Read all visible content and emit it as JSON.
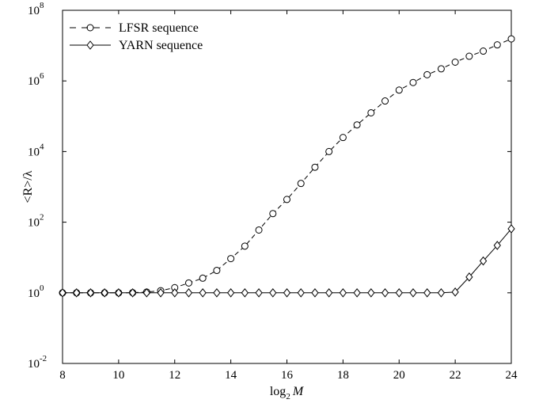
{
  "chart_data": {
    "type": "line",
    "xlabel": {
      "base": "log",
      "sub": "2",
      "var": "M"
    },
    "ylabel": "<R>/λ",
    "xlim": [
      8,
      24
    ],
    "ylim": [
      0.01,
      100000000
    ],
    "yscale": "log",
    "grid": false,
    "legend_position": "top-left",
    "x_ticks": [
      "8",
      "10",
      "12",
      "14",
      "16",
      "18",
      "20",
      "22",
      "24"
    ],
    "y_ticks": [
      {
        "base": "10",
        "exp": "-2"
      },
      {
        "base": "10",
        "exp": "0"
      },
      {
        "base": "10",
        "exp": "2"
      },
      {
        "base": "10",
        "exp": "4"
      },
      {
        "base": "10",
        "exp": "6"
      },
      {
        "base": "10",
        "exp": "8"
      }
    ],
    "x": [
      8,
      8.5,
      9,
      9.5,
      10,
      10.5,
      11,
      11.5,
      12,
      12.5,
      13,
      13.5,
      14,
      14.5,
      15,
      15.5,
      16,
      16.5,
      17,
      17.5,
      18,
      18.5,
      19,
      19.5,
      20,
      20.5,
      21,
      21.5,
      22,
      22.5,
      23,
      23.5,
      24
    ],
    "series": [
      {
        "name": "LFSR sequence",
        "marker": "circle",
        "line_style": "dashed",
        "values": [
          1,
          1,
          1,
          1,
          1,
          1.01,
          1.05,
          1.15,
          1.4,
          1.9,
          2.6,
          4.3,
          9.3,
          21,
          60,
          175,
          440,
          1250,
          3600,
          10000,
          25000,
          57000,
          125000,
          270000,
          550000,
          900000,
          1500000,
          2200000,
          3400000,
          5000000,
          7000000,
          10500000,
          15500000
        ]
      },
      {
        "name": "YARN sequence",
        "marker": "diamond",
        "line_style": "solid",
        "values": [
          1,
          1,
          1,
          1,
          1,
          1,
          1,
          1,
          1,
          1,
          1,
          1,
          1,
          1,
          1,
          1,
          1,
          1,
          1,
          1,
          1,
          1,
          1,
          1,
          1,
          1,
          1,
          1,
          1.05,
          2.8,
          8,
          22,
          65
        ]
      }
    ]
  }
}
